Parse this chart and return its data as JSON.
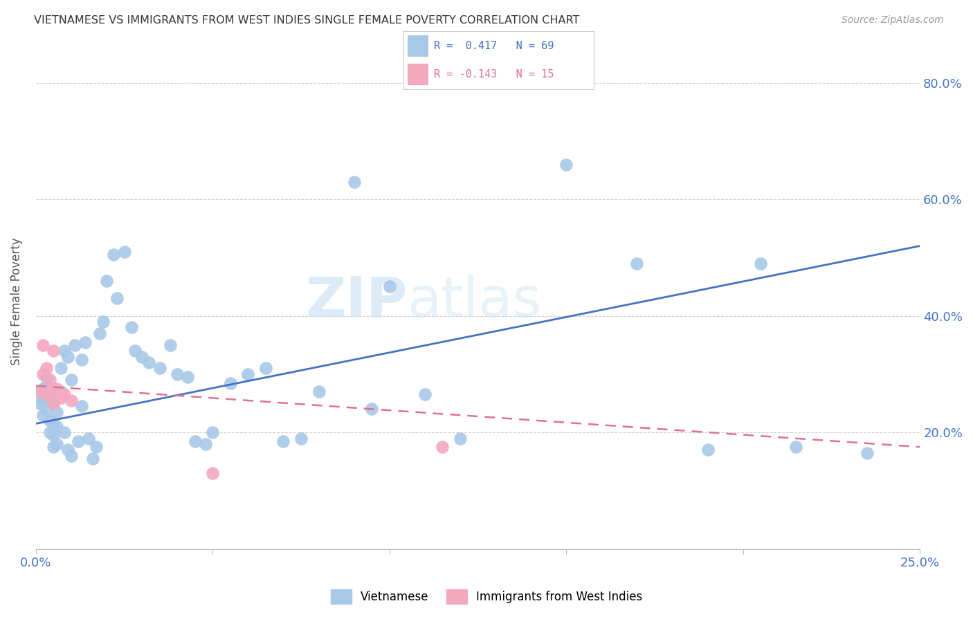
{
  "title": "VIETNAMESE VS IMMIGRANTS FROM WEST INDIES SINGLE FEMALE POVERTY CORRELATION CHART",
  "source": "Source: ZipAtlas.com",
  "ylabel": "Single Female Poverty",
  "xlim": [
    0.0,
    0.25
  ],
  "ylim": [
    0.0,
    0.85
  ],
  "blue_color": "#a8c8e8",
  "pink_color": "#f4a8c0",
  "blue_line_color": "#4472c4",
  "pink_line_color": "#e07090",
  "legend_label1": "Vietnamese",
  "legend_label2": "Immigrants from West Indies",
  "vietnamese_x": [
    0.001,
    0.001,
    0.002,
    0.002,
    0.002,
    0.003,
    0.003,
    0.003,
    0.003,
    0.004,
    0.004,
    0.004,
    0.005,
    0.005,
    0.005,
    0.005,
    0.006,
    0.006,
    0.006,
    0.007,
    0.007,
    0.008,
    0.008,
    0.009,
    0.009,
    0.01,
    0.01,
    0.011,
    0.012,
    0.013,
    0.013,
    0.014,
    0.015,
    0.016,
    0.017,
    0.018,
    0.019,
    0.02,
    0.022,
    0.023,
    0.025,
    0.027,
    0.028,
    0.03,
    0.032,
    0.035,
    0.038,
    0.04,
    0.043,
    0.045,
    0.048,
    0.05,
    0.055,
    0.06,
    0.065,
    0.07,
    0.075,
    0.08,
    0.09,
    0.095,
    0.1,
    0.11,
    0.12,
    0.15,
    0.17,
    0.19,
    0.205,
    0.215,
    0.235
  ],
  "vietnamese_y": [
    0.27,
    0.25,
    0.23,
    0.255,
    0.275,
    0.24,
    0.26,
    0.28,
    0.295,
    0.2,
    0.22,
    0.265,
    0.175,
    0.195,
    0.215,
    0.25,
    0.18,
    0.21,
    0.235,
    0.27,
    0.31,
    0.2,
    0.34,
    0.33,
    0.17,
    0.16,
    0.29,
    0.35,
    0.185,
    0.245,
    0.325,
    0.355,
    0.19,
    0.155,
    0.175,
    0.37,
    0.39,
    0.46,
    0.505,
    0.43,
    0.51,
    0.38,
    0.34,
    0.33,
    0.32,
    0.31,
    0.35,
    0.3,
    0.295,
    0.185,
    0.18,
    0.2,
    0.285,
    0.3,
    0.31,
    0.185,
    0.19,
    0.27,
    0.63,
    0.24,
    0.45,
    0.265,
    0.19,
    0.66,
    0.49,
    0.17,
    0.49,
    0.175,
    0.165
  ],
  "westindies_x": [
    0.001,
    0.002,
    0.002,
    0.003,
    0.003,
    0.004,
    0.004,
    0.005,
    0.005,
    0.006,
    0.007,
    0.008,
    0.01,
    0.05,
    0.115
  ],
  "westindies_y": [
    0.27,
    0.3,
    0.35,
    0.265,
    0.31,
    0.27,
    0.29,
    0.25,
    0.34,
    0.275,
    0.26,
    0.265,
    0.255,
    0.13,
    0.175
  ]
}
